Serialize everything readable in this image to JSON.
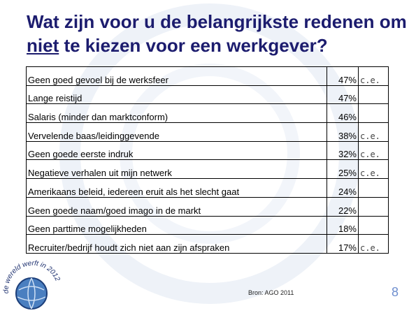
{
  "header": {
    "title": {
      "before": "Wat zijn voor u de belangrijkste redenen om",
      "emphasis": "niet",
      "after": "te kiezen voor een werkgever?"
    }
  },
  "table": {
    "rows": [
      [
        "Geen goed gevoel bij de werksfeer",
        "47%",
        "c.e."
      ],
      [
        "Lange reistijd",
        "47%",
        null
      ],
      [
        "Salaris (minder dan marktconform)",
        "46%",
        null
      ],
      [
        "Vervelende baas/leidinggevende",
        "38%",
        "c.e."
      ],
      [
        "Geen goede eerste indruk",
        "32%",
        "c.e."
      ],
      [
        "Negatieve verhalen uit mijn netwerk",
        "25%",
        "c.e."
      ],
      [
        "Amerikaans beleid, iedereen eruit als het slecht gaat",
        "24%",
        null
      ],
      [
        "Geen goede naam/goed imago in de markt",
        "22%",
        null
      ],
      [
        "Geen parttime mogelijkheden",
        "18%",
        null
      ],
      [
        "Recruiter/bedrijf houdt zich niet aan zijn afspraken",
        "17%",
        "c.e."
      ]
    ]
  },
  "logo": {
    "text": "de wereld werft in 2012"
  },
  "footer": {
    "source": "Bron: AGO 2011",
    "page": "8"
  }
}
